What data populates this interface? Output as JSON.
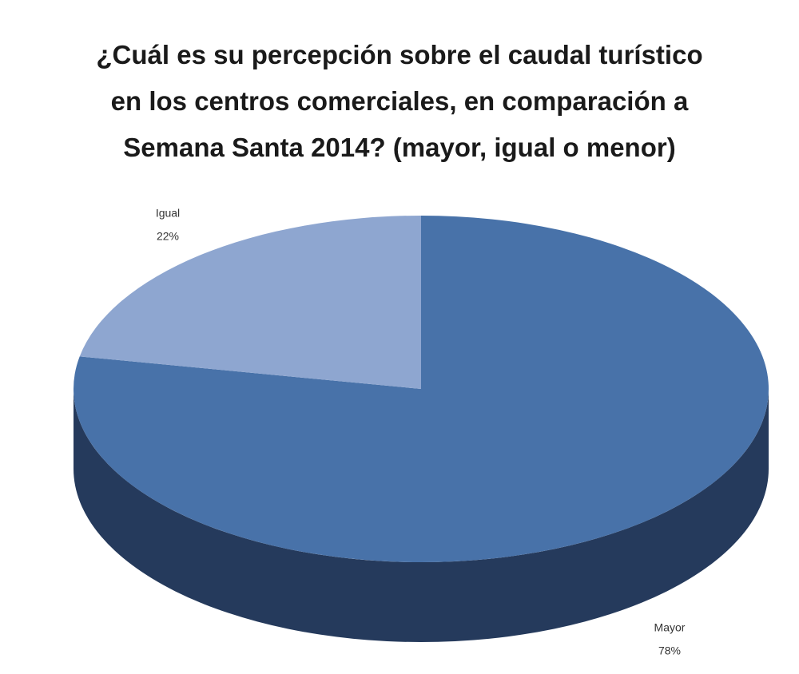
{
  "chart_data": {
    "type": "pie3d",
    "title": "¿Cuál es su percepción sobre el caudal turístico en los centros comerciales, en comparación a Semana Santa 2014? (mayor, igual o menor)",
    "categories": [
      "Mayor",
      "Igual"
    ],
    "values": [
      78,
      22
    ],
    "value_labels": [
      "78%",
      "22%"
    ],
    "colors": [
      "#4872a9",
      "#8ea6d0"
    ],
    "side_color": "#253a5c"
  }
}
